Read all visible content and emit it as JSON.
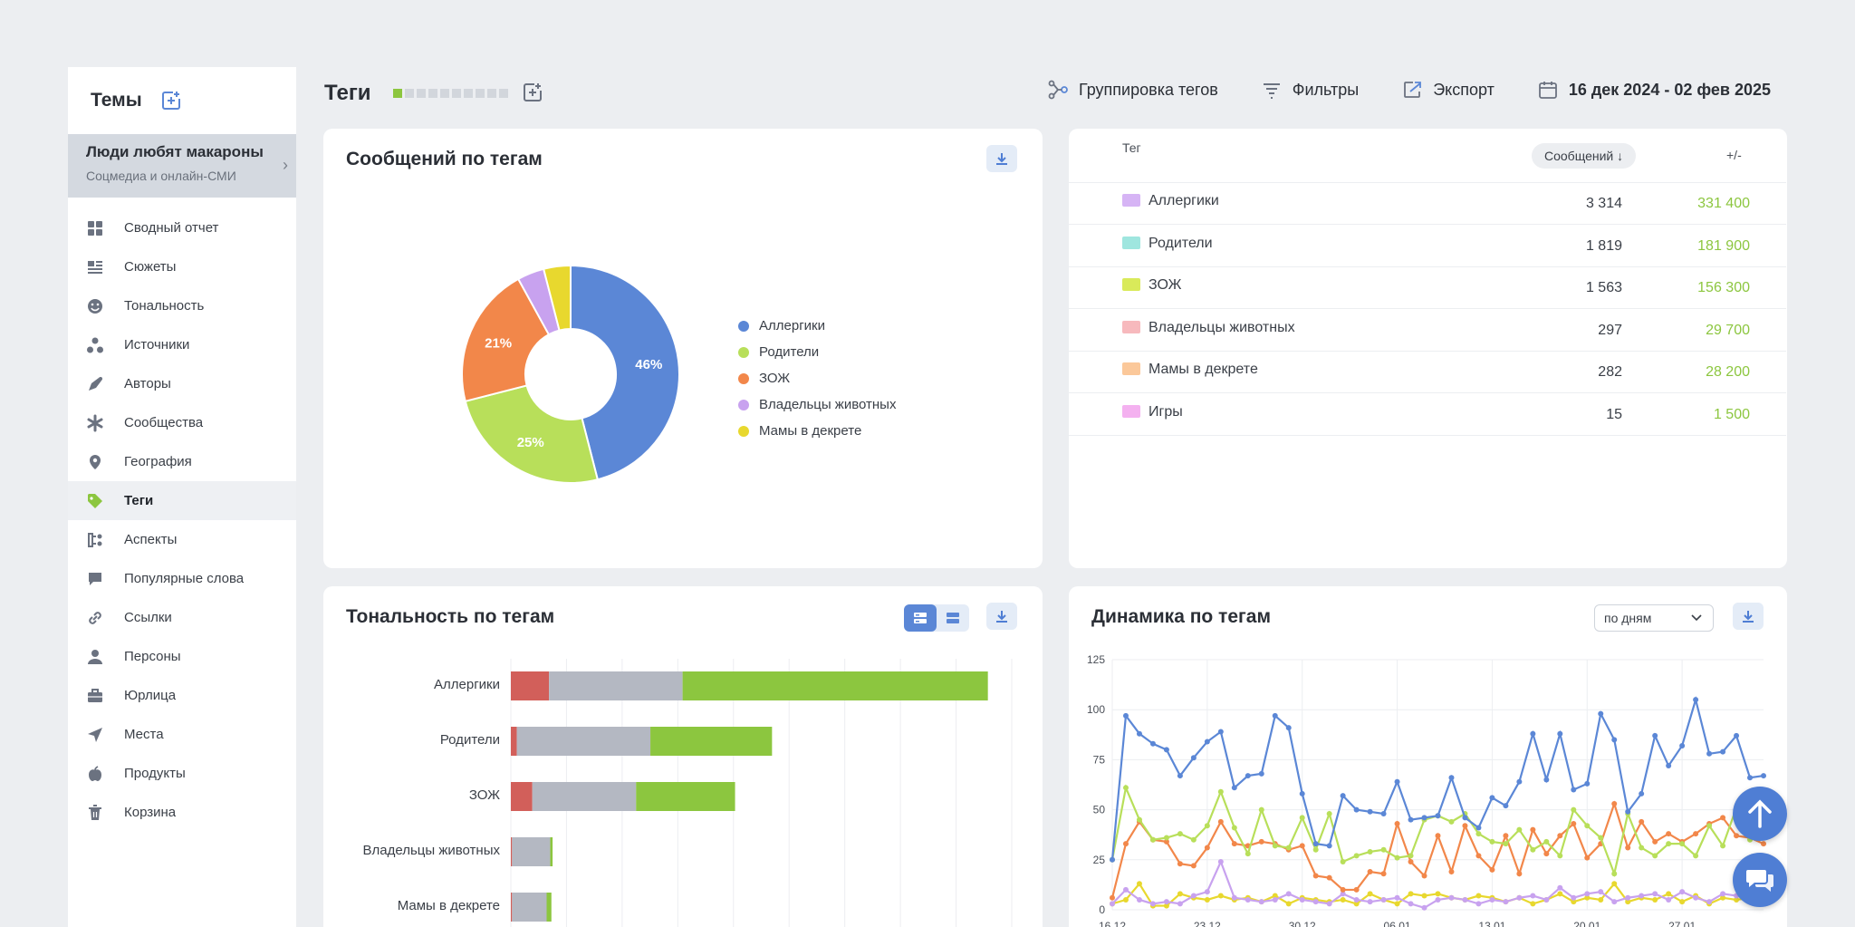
{
  "sidebar": {
    "title": "Темы",
    "project": {
      "name": "Люди любят макароны",
      "subtitle": "Соцмедиа и онлайн-СМИ"
    },
    "items": [
      {
        "label": "Сводный отчет",
        "icon": "grid-icon"
      },
      {
        "label": "Сюжеты",
        "icon": "stories-icon"
      },
      {
        "label": "Тональность",
        "icon": "smile-icon"
      },
      {
        "label": "Источники",
        "icon": "sources-icon"
      },
      {
        "label": "Авторы",
        "icon": "pen-icon"
      },
      {
        "label": "Сообщества",
        "icon": "communities-icon"
      },
      {
        "label": "География",
        "icon": "pin-icon"
      },
      {
        "label": "Теги",
        "icon": "tag-icon",
        "active": true
      },
      {
        "label": "Аспекты",
        "icon": "aspects-icon"
      },
      {
        "label": "Популярные слова",
        "icon": "chat-icon"
      },
      {
        "label": "Ссылки",
        "icon": "link-icon"
      },
      {
        "label": "Персоны",
        "icon": "person-icon"
      },
      {
        "label": "Юрлица",
        "icon": "briefcase-icon"
      },
      {
        "label": "Места",
        "icon": "send-icon"
      },
      {
        "label": "Продукты",
        "icon": "apple-icon"
      },
      {
        "label": "Корзина",
        "icon": "trash-icon"
      }
    ]
  },
  "header": {
    "title": "Теги",
    "grouping": "Группировка тегов",
    "filters": "Фильтры",
    "export": "Экспорт",
    "date_range": "16 дек 2024 - 02 фев 2025"
  },
  "colors": {
    "accent": "#4f7ed4",
    "positive": "#8cc63f",
    "negative": "#d25f5a",
    "neutral": "#b4b8c2"
  },
  "pie_card": {
    "title": "Сообщений по тегам",
    "chart_data": {
      "type": "pie",
      "donut": true,
      "slices": [
        {
          "label": "Аллергики",
          "value": 46,
          "color": "#5b87d6",
          "shown_label": "46%"
        },
        {
          "label": "Родители",
          "value": 25,
          "color": "#b8df5a",
          "shown_label": "25%"
        },
        {
          "label": "ЗОЖ",
          "value": 21,
          "color": "#f2874a",
          "shown_label": "21%"
        },
        {
          "label": "Владельцы животных",
          "value": 4,
          "color": "#c8a2ef",
          "shown_label": ""
        },
        {
          "label": "Мамы в декрете",
          "value": 4,
          "color": "#e8d82e",
          "shown_label": ""
        }
      ],
      "legend_position": "right"
    }
  },
  "table": {
    "headers": {
      "tag": "Тег",
      "messages": "Сообщений ↓",
      "diff": "+/-"
    },
    "rows": [
      {
        "name": "Аллергики",
        "count": "3 314",
        "diff": "331 400",
        "color": "#d6b4f5"
      },
      {
        "name": "Родители",
        "count": "1 819",
        "diff": "181 900",
        "color": "#9fe6df"
      },
      {
        "name": "ЗОЖ",
        "count": "1 563",
        "diff": "156 300",
        "color": "#d9ea5a"
      },
      {
        "name": "Владельцы животных",
        "count": "297",
        "diff": "29 700",
        "color": "#f7b9bd"
      },
      {
        "name": "Мамы в декрете",
        "count": "282",
        "diff": "28 200",
        "color": "#fbc89a"
      },
      {
        "name": "Игры",
        "count": "15",
        "diff": "1 500",
        "color": "#f4b1f0"
      }
    ]
  },
  "sentiment_card": {
    "title": "Тональность по тегам",
    "chart_data": {
      "type": "bar",
      "orientation": "horizontal",
      "stacked": true,
      "categories": [
        "Аллергики",
        "Родители",
        "ЗОЖ",
        "Владельцы животных",
        "Мамы в декрете"
      ],
      "series": [
        {
          "name": "negative",
          "color": "#d25f5a",
          "values": [
            160,
            25,
            90,
            5,
            5
          ]
        },
        {
          "name": "neutral",
          "color": "#b4b8c2",
          "values": [
            560,
            560,
            435,
            160,
            145
          ]
        },
        {
          "name": "positive",
          "color": "#8cc63f",
          "values": [
            1280,
            510,
            415,
            10,
            20
          ]
        }
      ],
      "xlim": [
        0,
        2100
      ],
      "grid": true
    }
  },
  "dynamics_card": {
    "title": "Динамика по тегам",
    "period_select": "по дням",
    "chart_data": {
      "type": "line",
      "x": [
        "16.12",
        "17.12",
        "18.12",
        "19.12",
        "20.12",
        "21.12",
        "22.12",
        "23.12",
        "24.12",
        "25.12",
        "26.12",
        "27.12",
        "28.12",
        "29.12",
        "30.12",
        "31.12",
        "01.01",
        "02.01",
        "03.01",
        "04.01",
        "05.01",
        "06.01",
        "07.01",
        "08.01",
        "09.01",
        "10.01",
        "11.01",
        "12.01",
        "13.01",
        "14.01",
        "15.01",
        "16.01",
        "17.01",
        "18.01",
        "19.01",
        "20.01",
        "21.01",
        "22.01",
        "23.01",
        "24.01",
        "25.01",
        "26.01",
        "27.01",
        "28.01",
        "29.01",
        "30.01",
        "31.01",
        "01.02",
        "02.02"
      ],
      "x_tick_labels": [
        "16.12",
        "23.12",
        "30.12",
        "06.01",
        "13.01",
        "20.01",
        "27.01"
      ],
      "ylim": [
        0,
        125
      ],
      "y_ticks": [
        0,
        25,
        50,
        75,
        100,
        125
      ],
      "grid": true,
      "series": [
        {
          "name": "Аллергики",
          "color": "#5b87d6",
          "values": [
            25,
            97,
            88,
            83,
            80,
            67,
            76,
            84,
            89,
            61,
            67,
            68,
            97,
            91,
            58,
            33,
            32,
            57,
            50,
            49,
            48,
            64,
            45,
            46,
            47,
            66,
            46,
            41,
            56,
            52,
            64,
            88,
            65,
            88,
            60,
            63,
            98,
            85,
            49,
            58,
            87,
            72,
            82,
            105,
            78,
            79,
            87,
            66,
            67
          ]
        },
        {
          "name": "Родители",
          "color": "#b8df5a",
          "values": [
            25,
            61,
            45,
            35,
            36,
            38,
            35,
            42,
            59,
            41,
            28,
            50,
            32,
            31,
            46,
            30,
            48,
            24,
            27,
            29,
            30,
            26,
            27,
            45,
            47,
            44,
            48,
            38,
            34,
            33,
            40,
            30,
            34,
            27,
            50,
            42,
            36,
            18,
            48,
            31,
            27,
            33,
            33,
            27,
            42,
            32,
            51,
            35,
            38
          ]
        },
        {
          "name": "ЗОЖ",
          "color": "#f2874a",
          "values": [
            6,
            33,
            44,
            35,
            34,
            23,
            22,
            31,
            44,
            33,
            32,
            34,
            33,
            30,
            32,
            17,
            16,
            10,
            10,
            19,
            18,
            43,
            24,
            17,
            37,
            19,
            42,
            27,
            20,
            37,
            18,
            40,
            28,
            37,
            43,
            26,
            33,
            53,
            31,
            44,
            34,
            38,
            34,
            38,
            43,
            46,
            37,
            36,
            33
          ]
        },
        {
          "name": "Владельцы животных",
          "color": "#c8a2ef",
          "values": [
            3,
            10,
            5,
            3,
            4,
            3,
            7,
            9,
            24,
            6,
            5,
            4,
            5,
            8,
            5,
            4,
            3,
            8,
            5,
            4,
            5,
            6,
            3,
            1,
            5,
            6,
            5,
            3,
            5,
            4,
            6,
            7,
            5,
            11,
            6,
            8,
            9,
            4,
            6,
            7,
            8,
            5,
            9,
            6,
            4,
            8,
            7,
            5,
            6
          ]
        },
        {
          "name": "Мамы в декрете",
          "color": "#e8d82e",
          "values": [
            3,
            5,
            13,
            2,
            2,
            8,
            6,
            5,
            7,
            5,
            6,
            4,
            7,
            3,
            6,
            5,
            4,
            5,
            3,
            8,
            5,
            3,
            8,
            7,
            8,
            6,
            5,
            7,
            6,
            4,
            6,
            3,
            5,
            8,
            4,
            6,
            5,
            13,
            4,
            6,
            5,
            8,
            4,
            7,
            3,
            6,
            5,
            6,
            5
          ]
        }
      ]
    }
  }
}
